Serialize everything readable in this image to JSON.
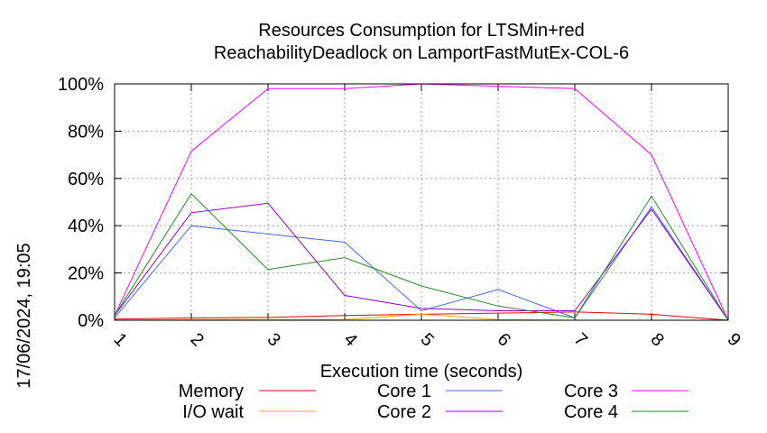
{
  "side_label": "17/06/2024, 19:05",
  "chart_data": {
    "type": "line",
    "title": "Resources Consumption for LTSMin+red",
    "subtitle": "ReachabilityDeadlock on LamportFastMutEx-COL-6",
    "xlabel": "Execution time (seconds)",
    "ylabel": "",
    "x": [
      1,
      2,
      3,
      4,
      5,
      6,
      7,
      8,
      9
    ],
    "xlim": [
      1,
      9
    ],
    "ylim": [
      0,
      100
    ],
    "x_ticks": [
      "1",
      "2",
      "3",
      "4",
      "5",
      "6",
      "7",
      "8",
      "9"
    ],
    "y_ticks": [
      "0%",
      "20%",
      "40%",
      "60%",
      "80%",
      "100%"
    ],
    "grid": true,
    "legend_placement": "bottom",
    "series": [
      {
        "name": "Memory",
        "color": "#ff0000",
        "values": [
          0.5,
          1,
          1.2,
          2,
          2.5,
          3,
          3.5,
          2.5,
          0
        ]
      },
      {
        "name": "I/O wait",
        "color": "#ffa500",
        "values": [
          0,
          0.3,
          0.3,
          0.3,
          2.5,
          0.3,
          0,
          0,
          0
        ]
      },
      {
        "name": "Core 1",
        "color": "#4169e1",
        "values": [
          1,
          40,
          36.5,
          33,
          4,
          13,
          1,
          48,
          0
        ]
      },
      {
        "name": "Core 2",
        "color": "#9400d3",
        "values": [
          2,
          45.5,
          49.5,
          10.5,
          5,
          4,
          4,
          47,
          0
        ]
      },
      {
        "name": "Core 3",
        "color": "#ff00ff",
        "values": [
          2,
          71.5,
          98,
          98,
          100,
          99,
          98,
          70,
          0
        ]
      },
      {
        "name": "Core 4",
        "color": "#228b22",
        "values": [
          2,
          53.5,
          21.5,
          26.5,
          14.5,
          6,
          1,
          52.5,
          0
        ]
      }
    ]
  }
}
